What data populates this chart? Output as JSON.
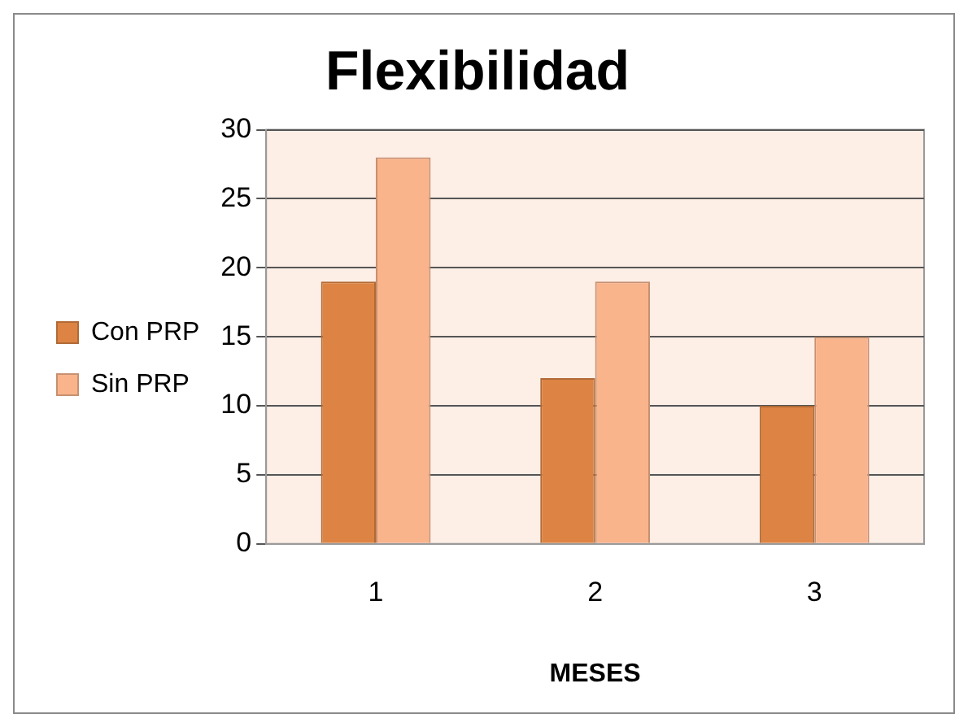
{
  "chart_data": {
    "type": "bar",
    "title": "Flexibilidad",
    "xlabel": "MESES",
    "categories": [
      "1",
      "2",
      "3"
    ],
    "series": [
      {
        "name": "Con PRP",
        "color": "#dd8444",
        "values": [
          19,
          12,
          10
        ]
      },
      {
        "name": "Sin PRP",
        "color": "#f9b48c",
        "values": [
          28,
          19,
          15
        ]
      }
    ],
    "ylim": [
      0,
      30
    ],
    "yticks": [
      0,
      5,
      10,
      15,
      20,
      25,
      30
    ],
    "grid": "y",
    "legend": "left"
  }
}
